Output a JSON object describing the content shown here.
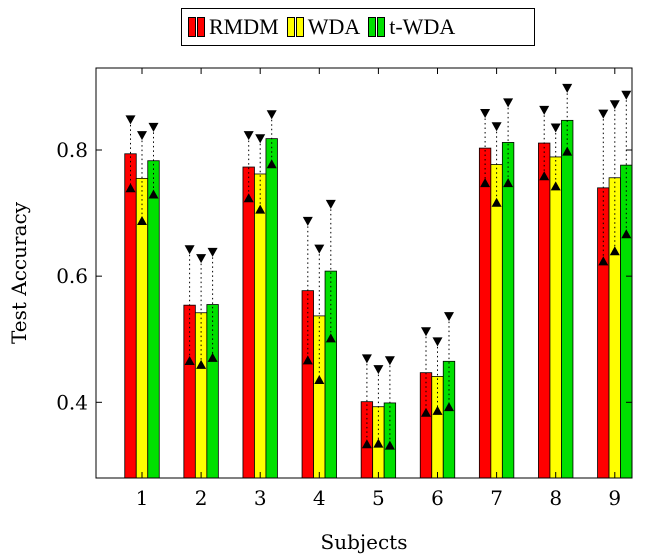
{
  "chart_data": {
    "type": "bar",
    "xlabel": "Subjects",
    "ylabel": "Test Accuracy",
    "categories": [
      "1",
      "2",
      "3",
      "4",
      "5",
      "6",
      "7",
      "8",
      "9"
    ],
    "yticks": [
      "0.4",
      "0.6",
      "0.8"
    ],
    "ylim": [
      0.28,
      0.93
    ],
    "grid": false,
    "legend_position": "top-center",
    "series": [
      {
        "name": "RMDM",
        "color": "#ff0000",
        "values": [
          0.794,
          0.554,
          0.773,
          0.577,
          0.401,
          0.447,
          0.803,
          0.811,
          0.74
        ],
        "lower": [
          0.741,
          0.467,
          0.725,
          0.468,
          0.335,
          0.385,
          0.749,
          0.76,
          0.625
        ],
        "upper": [
          0.847,
          0.641,
          0.822,
          0.686,
          0.468,
          0.511,
          0.857,
          0.862,
          0.856
        ]
      },
      {
        "name": "WDA",
        "color": "#ffff00",
        "values": [
          0.755,
          0.542,
          0.762,
          0.537,
          0.393,
          0.441,
          0.777,
          0.789,
          0.756
        ],
        "lower": [
          0.689,
          0.461,
          0.707,
          0.437,
          0.336,
          0.388,
          0.718,
          0.744,
          0.641
        ],
        "upper": [
          0.822,
          0.627,
          0.817,
          0.642,
          0.451,
          0.495,
          0.836,
          0.834,
          0.871
        ]
      },
      {
        "name": "t-WDA",
        "color": "#00e000",
        "values": [
          0.783,
          0.555,
          0.818,
          0.608,
          0.399,
          0.465,
          0.812,
          0.847,
          0.776
        ],
        "lower": [
          0.731,
          0.472,
          0.779,
          0.503,
          0.333,
          0.394,
          0.749,
          0.799,
          0.668
        ],
        "upper": [
          0.835,
          0.637,
          0.855,
          0.713,
          0.465,
          0.535,
          0.874,
          0.897,
          0.886
        ]
      }
    ]
  }
}
